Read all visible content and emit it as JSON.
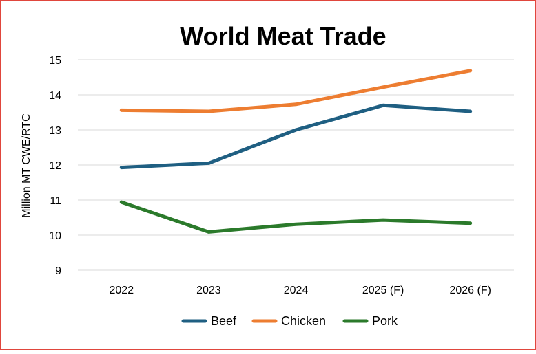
{
  "chart_data": {
    "type": "line",
    "title": "World Meat Trade",
    "xlabel": "",
    "ylabel": "Million MT CWE/RTC",
    "categories": [
      "2022",
      "2023",
      "2024",
      "2025 (F)",
      "2026 (F)"
    ],
    "ylim": [
      9,
      15
    ],
    "yticks": [
      9,
      10,
      11,
      12,
      13,
      14,
      15
    ],
    "grid": true,
    "legend_position": "bottom",
    "series": [
      {
        "name": "Beef",
        "color": "#1f5f82",
        "values": [
          11.93,
          12.05,
          13.0,
          13.7,
          13.53
        ]
      },
      {
        "name": "Chicken",
        "color": "#ed7d31",
        "values": [
          13.56,
          13.53,
          13.73,
          14.22,
          14.69
        ]
      },
      {
        "name": "Pork",
        "color": "#2b7a2b",
        "values": [
          10.94,
          10.09,
          10.31,
          10.43,
          10.34
        ]
      }
    ]
  }
}
